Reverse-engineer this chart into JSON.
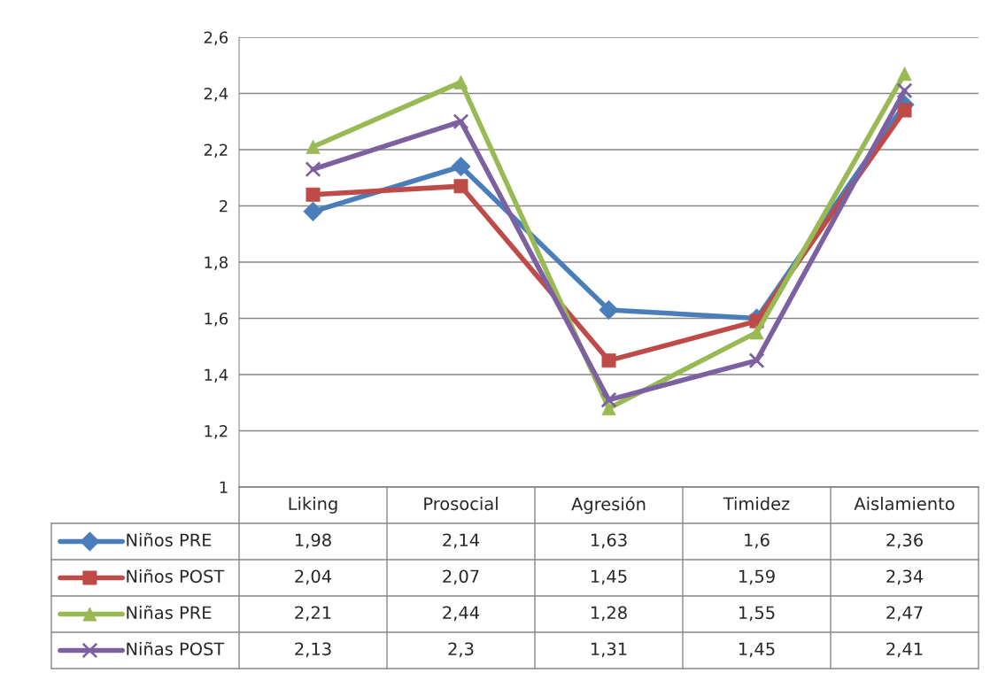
{
  "chart_data": {
    "type": "line",
    "categories": [
      "Liking",
      "Prosocial",
      "Agresión",
      "Timidez",
      "Aislamiento"
    ],
    "series": [
      {
        "name": "Niños PRE",
        "color": "#4a7ebb",
        "marker": "diamond",
        "values": [
          1.98,
          2.14,
          1.63,
          1.6,
          2.36
        ],
        "value_labels": [
          "1,98",
          "2,14",
          "1,63",
          "1,6",
          "2,36"
        ]
      },
      {
        "name": "Niños POST",
        "color": "#be4b48",
        "marker": "square",
        "values": [
          2.04,
          2.07,
          1.45,
          1.59,
          2.34
        ],
        "value_labels": [
          "2,04",
          "2,07",
          "1,45",
          "1,59",
          "2,34"
        ]
      },
      {
        "name": "Niñas PRE",
        "color": "#98b954",
        "marker": "triangle",
        "values": [
          2.21,
          2.44,
          1.28,
          1.55,
          2.47
        ],
        "value_labels": [
          "2,21",
          "2,44",
          "1,28",
          "1,55",
          "2,47"
        ]
      },
      {
        "name": "Niñas POST",
        "color": "#7d60a0",
        "marker": "cross",
        "values": [
          2.13,
          2.3,
          1.31,
          1.45,
          2.41
        ],
        "value_labels": [
          "2,13",
          "2,3",
          "1,31",
          "1,45",
          "2,41"
        ]
      }
    ],
    "ylim": [
      1,
      2.6
    ],
    "yticks": [
      {
        "value": 1,
        "label": "1"
      },
      {
        "value": 1.2,
        "label": "1,2"
      },
      {
        "value": 1.4,
        "label": "1,4"
      },
      {
        "value": 1.6,
        "label": "1,6"
      },
      {
        "value": 1.8,
        "label": "1,8"
      },
      {
        "value": 2,
        "label": "2"
      },
      {
        "value": 2.2,
        "label": "2,2"
      },
      {
        "value": 2.4,
        "label": "2,4"
      },
      {
        "value": 2.6,
        "label": "2,6"
      }
    ],
    "grid": "y",
    "legend": "bottom left",
    "line_style": "solid"
  }
}
